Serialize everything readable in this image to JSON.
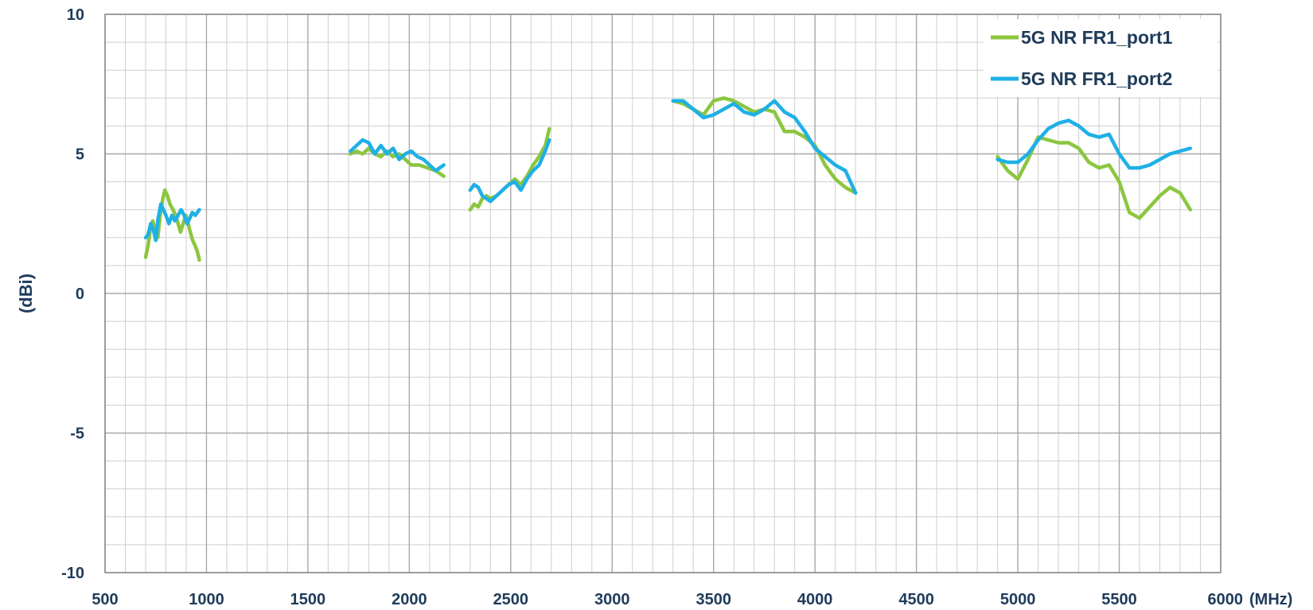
{
  "chart_data": {
    "type": "line",
    "title": "",
    "xlabel": "(MHz)",
    "ylabel": "(dBi)",
    "xlim": [
      500,
      6000
    ],
    "ylim": [
      -10,
      10
    ],
    "x_ticks": [
      "500",
      "1000",
      "1500",
      "2000",
      "2500",
      "3000",
      "3500",
      "4000",
      "4500",
      "5000",
      "5500",
      "6000"
    ],
    "y_ticks": [
      "10",
      "5",
      "0",
      "-5",
      "-10"
    ],
    "grid": true,
    "legend_position": "top-right",
    "series": [
      {
        "name": "5G NR FR1_port1",
        "color": "#8cc63f",
        "segments": [
          [
            [
              700,
              1.3
            ],
            [
              712,
              1.7
            ],
            [
              725,
              2.4
            ],
            [
              735,
              2.6
            ],
            [
              748,
              2.3
            ],
            [
              760,
              2.0
            ],
            [
              772,
              2.8
            ],
            [
              785,
              3.4
            ],
            [
              795,
              3.7
            ],
            [
              808,
              3.5
            ],
            [
              820,
              3.2
            ],
            [
              835,
              3.0
            ],
            [
              848,
              2.8
            ],
            [
              860,
              2.5
            ],
            [
              872,
              2.2
            ],
            [
              885,
              2.5
            ],
            [
              898,
              2.8
            ],
            [
              910,
              2.5
            ],
            [
              920,
              2.2
            ],
            [
              932,
              1.9
            ],
            [
              945,
              1.7
            ],
            [
              955,
              1.5
            ],
            [
              965,
              1.2
            ]
          ],
          [
            [
              1710,
              5.0
            ],
            [
              1740,
              5.1
            ],
            [
              1770,
              5.0
            ],
            [
              1800,
              5.2
            ],
            [
              1830,
              5.0
            ],
            [
              1860,
              4.9
            ],
            [
              1890,
              5.1
            ],
            [
              1920,
              4.9
            ],
            [
              1950,
              5.0
            ],
            [
              1980,
              4.8
            ],
            [
              2010,
              4.6
            ],
            [
              2050,
              4.6
            ],
            [
              2090,
              4.5
            ],
            [
              2130,
              4.4
            ],
            [
              2170,
              4.2
            ]
          ],
          [
            [
              2300,
              3.0
            ],
            [
              2320,
              3.2
            ],
            [
              2340,
              3.1
            ],
            [
              2360,
              3.4
            ],
            [
              2380,
              3.5
            ],
            [
              2400,
              3.4
            ],
            [
              2430,
              3.5
            ],
            [
              2460,
              3.7
            ],
            [
              2490,
              3.9
            ],
            [
              2520,
              4.1
            ],
            [
              2550,
              3.9
            ],
            [
              2580,
              4.2
            ],
            [
              2610,
              4.6
            ],
            [
              2640,
              4.9
            ],
            [
              2670,
              5.3
            ],
            [
              2690,
              5.9
            ]
          ],
          [
            [
              3300,
              6.9
            ],
            [
              3350,
              6.8
            ],
            [
              3400,
              6.6
            ],
            [
              3450,
              6.4
            ],
            [
              3500,
              6.9
            ],
            [
              3550,
              7.0
            ],
            [
              3600,
              6.9
            ],
            [
              3650,
              6.7
            ],
            [
              3700,
              6.5
            ],
            [
              3750,
              6.6
            ],
            [
              3800,
              6.5
            ],
            [
              3850,
              5.8
            ],
            [
              3900,
              5.8
            ],
            [
              3950,
              5.6
            ],
            [
              4000,
              5.3
            ],
            [
              4050,
              4.6
            ],
            [
              4100,
              4.1
            ],
            [
              4150,
              3.8
            ],
            [
              4200,
              3.6
            ]
          ],
          [
            [
              4900,
              4.9
            ],
            [
              4950,
              4.4
            ],
            [
              5000,
              4.1
            ],
            [
              5050,
              4.8
            ],
            [
              5100,
              5.6
            ],
            [
              5150,
              5.5
            ],
            [
              5200,
              5.4
            ],
            [
              5250,
              5.4
            ],
            [
              5300,
              5.2
            ],
            [
              5350,
              4.7
            ],
            [
              5400,
              4.5
            ],
            [
              5450,
              4.6
            ],
            [
              5500,
              4.0
            ],
            [
              5550,
              2.9
            ],
            [
              5600,
              2.7
            ],
            [
              5650,
              3.1
            ],
            [
              5700,
              3.5
            ],
            [
              5750,
              3.8
            ],
            [
              5800,
              3.6
            ],
            [
              5850,
              3.0
            ]
          ]
        ]
      },
      {
        "name": "5G NR FR1_port2",
        "color": "#1fb0e6",
        "segments": [
          [
            [
              700,
              2.0
            ],
            [
              712,
              2.1
            ],
            [
              725,
              2.5
            ],
            [
              738,
              2.3
            ],
            [
              750,
              1.9
            ],
            [
              762,
              2.7
            ],
            [
              775,
              3.2
            ],
            [
              788,
              3.0
            ],
            [
              800,
              2.8
            ],
            [
              815,
              2.5
            ],
            [
              830,
              2.8
            ],
            [
              845,
              2.6
            ],
            [
              860,
              2.8
            ],
            [
              875,
              3.0
            ],
            [
              890,
              2.8
            ],
            [
              905,
              2.5
            ],
            [
              918,
              2.7
            ],
            [
              930,
              2.9
            ],
            [
              945,
              2.8
            ],
            [
              965,
              3.0
            ]
          ],
          [
            [
              1710,
              5.1
            ],
            [
              1740,
              5.3
            ],
            [
              1770,
              5.5
            ],
            [
              1800,
              5.4
            ],
            [
              1830,
              5.0
            ],
            [
              1860,
              5.3
            ],
            [
              1890,
              5.0
            ],
            [
              1920,
              5.2
            ],
            [
              1950,
              4.8
            ],
            [
              1980,
              5.0
            ],
            [
              2010,
              5.1
            ],
            [
              2040,
              4.9
            ],
            [
              2070,
              4.8
            ],
            [
              2100,
              4.6
            ],
            [
              2130,
              4.4
            ],
            [
              2170,
              4.6
            ]
          ],
          [
            [
              2300,
              3.7
            ],
            [
              2320,
              3.9
            ],
            [
              2340,
              3.8
            ],
            [
              2360,
              3.5
            ],
            [
              2380,
              3.4
            ],
            [
              2400,
              3.3
            ],
            [
              2430,
              3.5
            ],
            [
              2460,
              3.7
            ],
            [
              2490,
              3.9
            ],
            [
              2520,
              4.0
            ],
            [
              2550,
              3.7
            ],
            [
              2580,
              4.1
            ],
            [
              2610,
              4.4
            ],
            [
              2640,
              4.6
            ],
            [
              2670,
              5.1
            ],
            [
              2690,
              5.5
            ]
          ],
          [
            [
              3300,
              6.9
            ],
            [
              3350,
              6.9
            ],
            [
              3400,
              6.6
            ],
            [
              3450,
              6.3
            ],
            [
              3500,
              6.4
            ],
            [
              3550,
              6.6
            ],
            [
              3600,
              6.8
            ],
            [
              3650,
              6.5
            ],
            [
              3700,
              6.4
            ],
            [
              3750,
              6.6
            ],
            [
              3800,
              6.9
            ],
            [
              3850,
              6.5
            ],
            [
              3900,
              6.3
            ],
            [
              3950,
              5.8
            ],
            [
              4000,
              5.2
            ],
            [
              4050,
              4.9
            ],
            [
              4100,
              4.6
            ],
            [
              4150,
              4.4
            ],
            [
              4200,
              3.6
            ]
          ],
          [
            [
              4900,
              4.8
            ],
            [
              4950,
              4.7
            ],
            [
              5000,
              4.7
            ],
            [
              5050,
              5.0
            ],
            [
              5100,
              5.5
            ],
            [
              5150,
              5.9
            ],
            [
              5200,
              6.1
            ],
            [
              5250,
              6.2
            ],
            [
              5300,
              6.0
            ],
            [
              5350,
              5.7
            ],
            [
              5400,
              5.6
            ],
            [
              5450,
              5.7
            ],
            [
              5500,
              5.0
            ],
            [
              5550,
              4.5
            ],
            [
              5600,
              4.5
            ],
            [
              5650,
              4.6
            ],
            [
              5700,
              4.8
            ],
            [
              5750,
              5.0
            ],
            [
              5800,
              5.1
            ],
            [
              5850,
              5.2
            ]
          ]
        ]
      }
    ]
  }
}
